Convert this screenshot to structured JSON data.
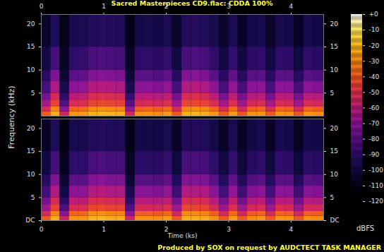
{
  "chart_data": {
    "type": "heatmap",
    "title": "Sacred Masterpieces CD9.flac: CDDA 100%",
    "caption": "Produced by SOX on request by AUDCTECT TASK MANAGER",
    "x_label": "Time (ks)",
    "y_label": "Frequency (kHz)",
    "xlim": [
      0,
      4.52
    ],
    "xticks": [
      0,
      1,
      2,
      3,
      4
    ],
    "ylim": [
      0,
      22.05
    ],
    "time_edges": [
      0,
      0.15,
      0.3,
      0.45,
      0.6,
      0.75,
      0.9,
      1.05,
      1.2,
      1.35,
      1.5,
      1.65,
      1.8,
      1.95,
      2.1,
      2.25,
      2.4,
      2.55,
      2.7,
      2.85,
      3,
      3.15,
      3.3,
      3.45,
      3.6,
      3.75,
      3.9,
      4.05,
      4.2,
      4.35,
      4.52
    ],
    "freq_edges": [
      0,
      1,
      2,
      3.5,
      5,
      7.5,
      10,
      15,
      22.05
    ],
    "channels": [
      {
        "yticks": [
          5,
          10,
          15,
          20
        ],
        "cells": [
          [
            -40,
            -23,
            -55,
            -28,
            -27,
            -22,
            -21,
            -22,
            -23,
            -54,
            -29,
            -28,
            -30,
            -27,
            -41,
            -22,
            -21,
            -23,
            -28,
            -40,
            -27,
            -42,
            -29,
            -28,
            -40,
            -28,
            -29,
            -41,
            -28,
            -30
          ],
          [
            -52,
            -31,
            -70,
            -38,
            -37,
            -30,
            -29,
            -30,
            -31,
            -69,
            -39,
            -38,
            -40,
            -37,
            -53,
            -30,
            -29,
            -31,
            -38,
            -52,
            -37,
            -54,
            -39,
            -38,
            -52,
            -38,
            -39,
            -53,
            -38,
            -40
          ],
          [
            -65,
            -46,
            -82,
            -52,
            -51,
            -45,
            -44,
            -45,
            -46,
            -81,
            -53,
            -52,
            -54,
            -51,
            -66,
            -45,
            -44,
            -46,
            -52,
            -65,
            -51,
            -66,
            -53,
            -52,
            -65,
            -52,
            -53,
            -66,
            -52,
            -54
          ],
          [
            -74,
            -53,
            -90,
            -60,
            -59,
            -52,
            -51,
            -52,
            -53,
            -89,
            -61,
            -60,
            -62,
            -59,
            -75,
            -52,
            -51,
            -53,
            -60,
            -74,
            -59,
            -75,
            -61,
            -60,
            -74,
            -60,
            -61,
            -75,
            -60,
            -62
          ],
          [
            -84,
            -63,
            -98,
            -70,
            -69,
            -62,
            -61,
            -62,
            -63,
            -97,
            -71,
            -70,
            -72,
            -69,
            -85,
            -62,
            -61,
            -63,
            -70,
            -84,
            -69,
            -85,
            -71,
            -70,
            -84,
            -70,
            -71,
            -85,
            -70,
            -72
          ],
          [
            -92,
            -73,
            -104,
            -80,
            -79,
            -72,
            -71,
            -72,
            -73,
            -103,
            -81,
            -80,
            -82,
            -79,
            -93,
            -72,
            -71,
            -73,
            -80,
            -92,
            -79,
            -93,
            -81,
            -80,
            -92,
            -80,
            -81,
            -93,
            -80,
            -82
          ],
          [
            -100,
            -85,
            -108,
            -90,
            -89,
            -84,
            -83,
            -84,
            -85,
            -107,
            -91,
            -90,
            -92,
            -89,
            -101,
            -84,
            -83,
            -85,
            -90,
            -100,
            -89,
            -101,
            -91,
            -90,
            -100,
            -90,
            -91,
            -101,
            -90,
            -92
          ],
          [
            -106,
            -95,
            -112,
            -98,
            -97,
            -94,
            -93,
            -94,
            -95,
            -111,
            -99,
            -98,
            -100,
            -97,
            -106,
            -94,
            -93,
            -95,
            -98,
            -106,
            -97,
            -107,
            -99,
            -98,
            -106,
            -98,
            -99,
            -107,
            -98,
            -100
          ]
        ]
      },
      {
        "yticks": [
          {
            "value": 0,
            "label": "DC"
          },
          5,
          10,
          15,
          20
        ],
        "cells": [
          [
            -41,
            -23,
            -56,
            -28,
            -28,
            -22,
            -21,
            -23,
            -23,
            -55,
            -29,
            -29,
            -30,
            -27,
            -42,
            -22,
            -22,
            -23,
            -29,
            -41,
            -27,
            -42,
            -30,
            -28,
            -41,
            -28,
            -29,
            -42,
            -29,
            -30
          ],
          [
            -53,
            -31,
            -71,
            -38,
            -38,
            -30,
            -29,
            -31,
            -31,
            -70,
            -39,
            -39,
            -40,
            -37,
            -54,
            -30,
            -30,
            -31,
            -39,
            -53,
            -37,
            -54,
            -40,
            -38,
            -53,
            -38,
            -39,
            -54,
            -39,
            -40
          ],
          [
            -66,
            -46,
            -83,
            -52,
            -52,
            -45,
            -44,
            -46,
            -46,
            -82,
            -53,
            -53,
            -54,
            -51,
            -67,
            -45,
            -45,
            -46,
            -53,
            -66,
            -51,
            -67,
            -54,
            -52,
            -66,
            -52,
            -53,
            -67,
            -53,
            -54
          ],
          [
            -75,
            -53,
            -91,
            -60,
            -60,
            -52,
            -51,
            -53,
            -53,
            -90,
            -61,
            -61,
            -62,
            -59,
            -76,
            -52,
            -52,
            -53,
            -61,
            -75,
            -59,
            -76,
            -62,
            -60,
            -75,
            -60,
            -61,
            -76,
            -61,
            -62
          ],
          [
            -85,
            -63,
            -99,
            -70,
            -70,
            -62,
            -61,
            -63,
            -63,
            -98,
            -71,
            -71,
            -72,
            -69,
            -86,
            -62,
            -62,
            -63,
            -71,
            -85,
            -69,
            -86,
            -72,
            -70,
            -85,
            -70,
            -71,
            -86,
            -71,
            -72
          ],
          [
            -93,
            -73,
            -105,
            -80,
            -80,
            -72,
            -71,
            -73,
            -73,
            -104,
            -81,
            -81,
            -82,
            -79,
            -94,
            -72,
            -72,
            -73,
            -81,
            -93,
            -79,
            -94,
            -82,
            -80,
            -93,
            -80,
            -81,
            -94,
            -81,
            -82
          ],
          [
            -101,
            -85,
            -109,
            -90,
            -90,
            -84,
            -83,
            -85,
            -85,
            -108,
            -91,
            -91,
            -92,
            -89,
            -102,
            -84,
            -84,
            -85,
            -91,
            -101,
            -89,
            -102,
            -92,
            -90,
            -101,
            -90,
            -91,
            -102,
            -91,
            -92
          ],
          [
            -107,
            -95,
            -113,
            -98,
            -98,
            -94,
            -93,
            -95,
            -95,
            -112,
            -99,
            -99,
            -100,
            -97,
            -107,
            -94,
            -94,
            -95,
            -99,
            -107,
            -97,
            -108,
            -100,
            -98,
            -107,
            -98,
            -99,
            -108,
            -99,
            -100
          ]
        ]
      }
    ],
    "colorbar": {
      "label": "dBFS",
      "range": [
        -120,
        0
      ],
      "ticks": [
        {
          "value": 0,
          "label": "+0"
        },
        -10,
        -20,
        -30,
        -40,
        -50,
        -60,
        -70,
        -80,
        -90,
        -100,
        -110,
        -120
      ]
    }
  }
}
